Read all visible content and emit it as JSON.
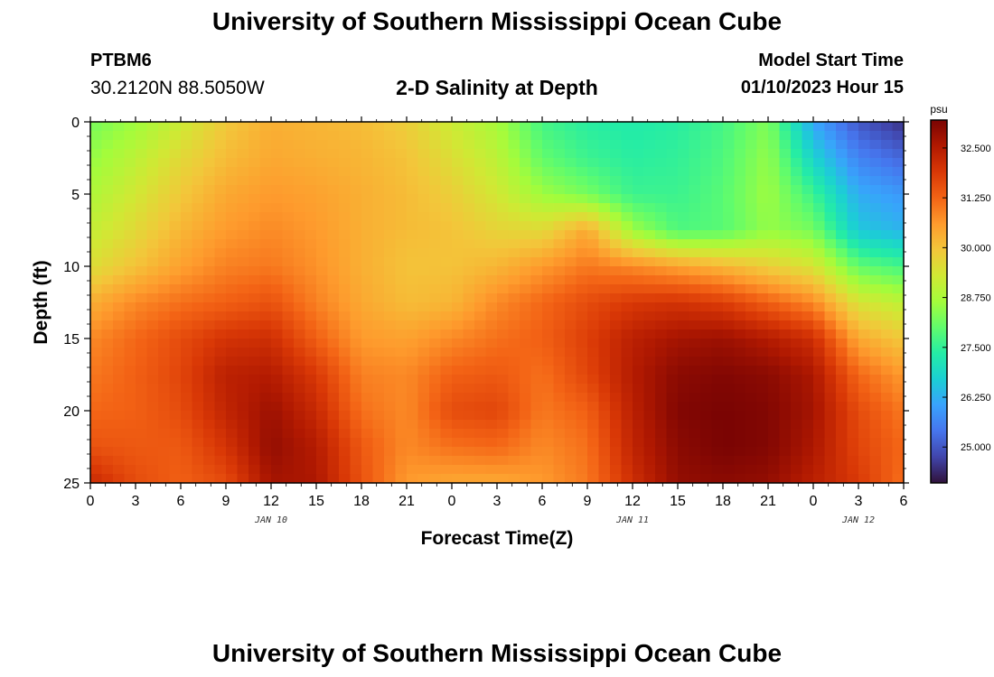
{
  "header": {
    "title": "University of Southern Mississippi Ocean Cube",
    "station": "PTBM6",
    "coords": "30.2120N  88.5050W",
    "subtitle": "2-D Salinity at Depth",
    "model_start_label": "Model Start Time",
    "model_start_value": "01/10/2023 Hour 15"
  },
  "footer": {
    "title_repeat": "University of Southern Mississippi Ocean Cube"
  },
  "chart_data": {
    "type": "heatmap",
    "title": "2-D Salinity at Depth",
    "xlabel": "Forecast Time(Z)",
    "ylabel": "Depth (ft)",
    "x_tick_labels": [
      "0",
      "3",
      "6",
      "9",
      "12",
      "15",
      "18",
      "21",
      "0",
      "3",
      "6",
      "9",
      "12",
      "15",
      "18",
      "21",
      "0",
      "3",
      "6"
    ],
    "x_hours": [
      0,
      3,
      6,
      9,
      12,
      15,
      18,
      21,
      24,
      27,
      30,
      33,
      36,
      39,
      42,
      45,
      48,
      51,
      54
    ],
    "date_labels": [
      {
        "label": "JAN 10",
        "hour": 12
      },
      {
        "label": "JAN 11",
        "hour": 36
      },
      {
        "label": "JAN 12",
        "hour": 51
      }
    ],
    "y_tick_labels": [
      "0",
      "5",
      "10",
      "15",
      "20",
      "25"
    ],
    "y_values": [
      0,
      5,
      10,
      15,
      20,
      25
    ],
    "ylim": [
      0,
      25
    ],
    "xlim": [
      0,
      54
    ],
    "colorbar": {
      "unit": "psu",
      "min": 24.1,
      "max": 33.2,
      "tick_labels": [
        "32.500",
        "31.250",
        "30.000",
        "28.750",
        "27.500",
        "26.250",
        "25.000"
      ],
      "tick_values": [
        32.5,
        31.25,
        30.0,
        28.75,
        27.5,
        26.25,
        25.0
      ],
      "colors": [
        "#30123b",
        "#4145ab",
        "#4675ed",
        "#39a2fc",
        "#1bcfd4",
        "#24eca6",
        "#61fc6c",
        "#a4fc3b",
        "#d1e834",
        "#f3c63a",
        "#fe9b2d",
        "#f36315",
        "#d93806",
        "#b11901",
        "#7a0403"
      ]
    },
    "salinity_grid_note": "Values in psu; rows = depth 0..25 ft step 2.5, columns = forecast hour 0..54 step 3",
    "grid_depths": [
      0,
      2.5,
      5,
      7.5,
      10,
      12.5,
      15,
      17.5,
      20,
      22.5,
      25
    ],
    "grid_hours": [
      0,
      3,
      6,
      9,
      12,
      15,
      18,
      21,
      24,
      27,
      30,
      33,
      36,
      39,
      42,
      45,
      48,
      51,
      54
    ],
    "salinity": [
      [
        28.2,
        28.6,
        29.2,
        29.9,
        30.3,
        30.2,
        30.1,
        29.8,
        29.2,
        28.7,
        27.7,
        27.4,
        27.3,
        27.4,
        27.7,
        28.3,
        26.1,
        25.0,
        24.5
      ],
      [
        28.5,
        29.0,
        29.6,
        30.1,
        30.4,
        30.3,
        30.2,
        30.0,
        29.5,
        29.0,
        28.0,
        27.6,
        27.4,
        27.5,
        27.8,
        28.5,
        26.8,
        25.6,
        25.2
      ],
      [
        28.8,
        29.3,
        29.9,
        30.4,
        30.6,
        30.5,
        30.3,
        30.1,
        29.8,
        29.3,
        28.6,
        28.2,
        27.6,
        27.6,
        27.9,
        28.6,
        27.6,
        26.2,
        25.9
      ],
      [
        29.1,
        29.6,
        30.2,
        30.6,
        30.8,
        30.6,
        30.3,
        30.1,
        30.0,
        29.7,
        29.6,
        30.4,
        28.6,
        27.8,
        27.9,
        28.5,
        28.2,
        26.6,
        26.3
      ],
      [
        29.5,
        30.0,
        30.5,
        30.9,
        31.0,
        30.7,
        30.3,
        30.0,
        30.0,
        30.2,
        30.6,
        31.0,
        30.8,
        30.5,
        30.2,
        29.8,
        29.4,
        28.0,
        27.7
      ],
      [
        30.3,
        30.8,
        31.1,
        31.3,
        31.5,
        30.9,
        30.4,
        30.1,
        30.2,
        30.8,
        31.2,
        31.6,
        31.9,
        32.0,
        31.8,
        31.3,
        30.8,
        29.4,
        29.0
      ],
      [
        30.8,
        31.2,
        31.6,
        32.0,
        32.1,
        31.3,
        30.6,
        30.5,
        30.8,
        31.1,
        31.3,
        31.8,
        32.4,
        32.7,
        32.8,
        32.5,
        32.1,
        30.4,
        29.9
      ],
      [
        31.0,
        31.3,
        31.7,
        32.4,
        32.5,
        31.9,
        30.9,
        30.8,
        31.3,
        31.4,
        31.1,
        31.7,
        32.5,
        33.0,
        33.1,
        33.0,
        32.6,
        31.2,
        30.6
      ],
      [
        31.2,
        31.3,
        31.6,
        32.3,
        32.8,
        32.2,
        31.1,
        30.8,
        31.6,
        31.7,
        31.0,
        31.3,
        32.4,
        33.1,
        33.2,
        33.1,
        32.7,
        31.6,
        31.0
      ],
      [
        31.5,
        31.4,
        31.4,
        32.0,
        32.9,
        32.5,
        31.4,
        30.8,
        31.1,
        31.2,
        30.8,
        31.1,
        32.3,
        33.0,
        33.2,
        33.1,
        32.6,
        31.7,
        31.2
      ],
      [
        32.2,
        31.6,
        31.3,
        31.6,
        32.7,
        32.6,
        31.5,
        30.6,
        30.4,
        30.4,
        30.6,
        31.0,
        32.1,
        32.9,
        33.0,
        32.9,
        32.4,
        31.9,
        31.1
      ]
    ]
  }
}
